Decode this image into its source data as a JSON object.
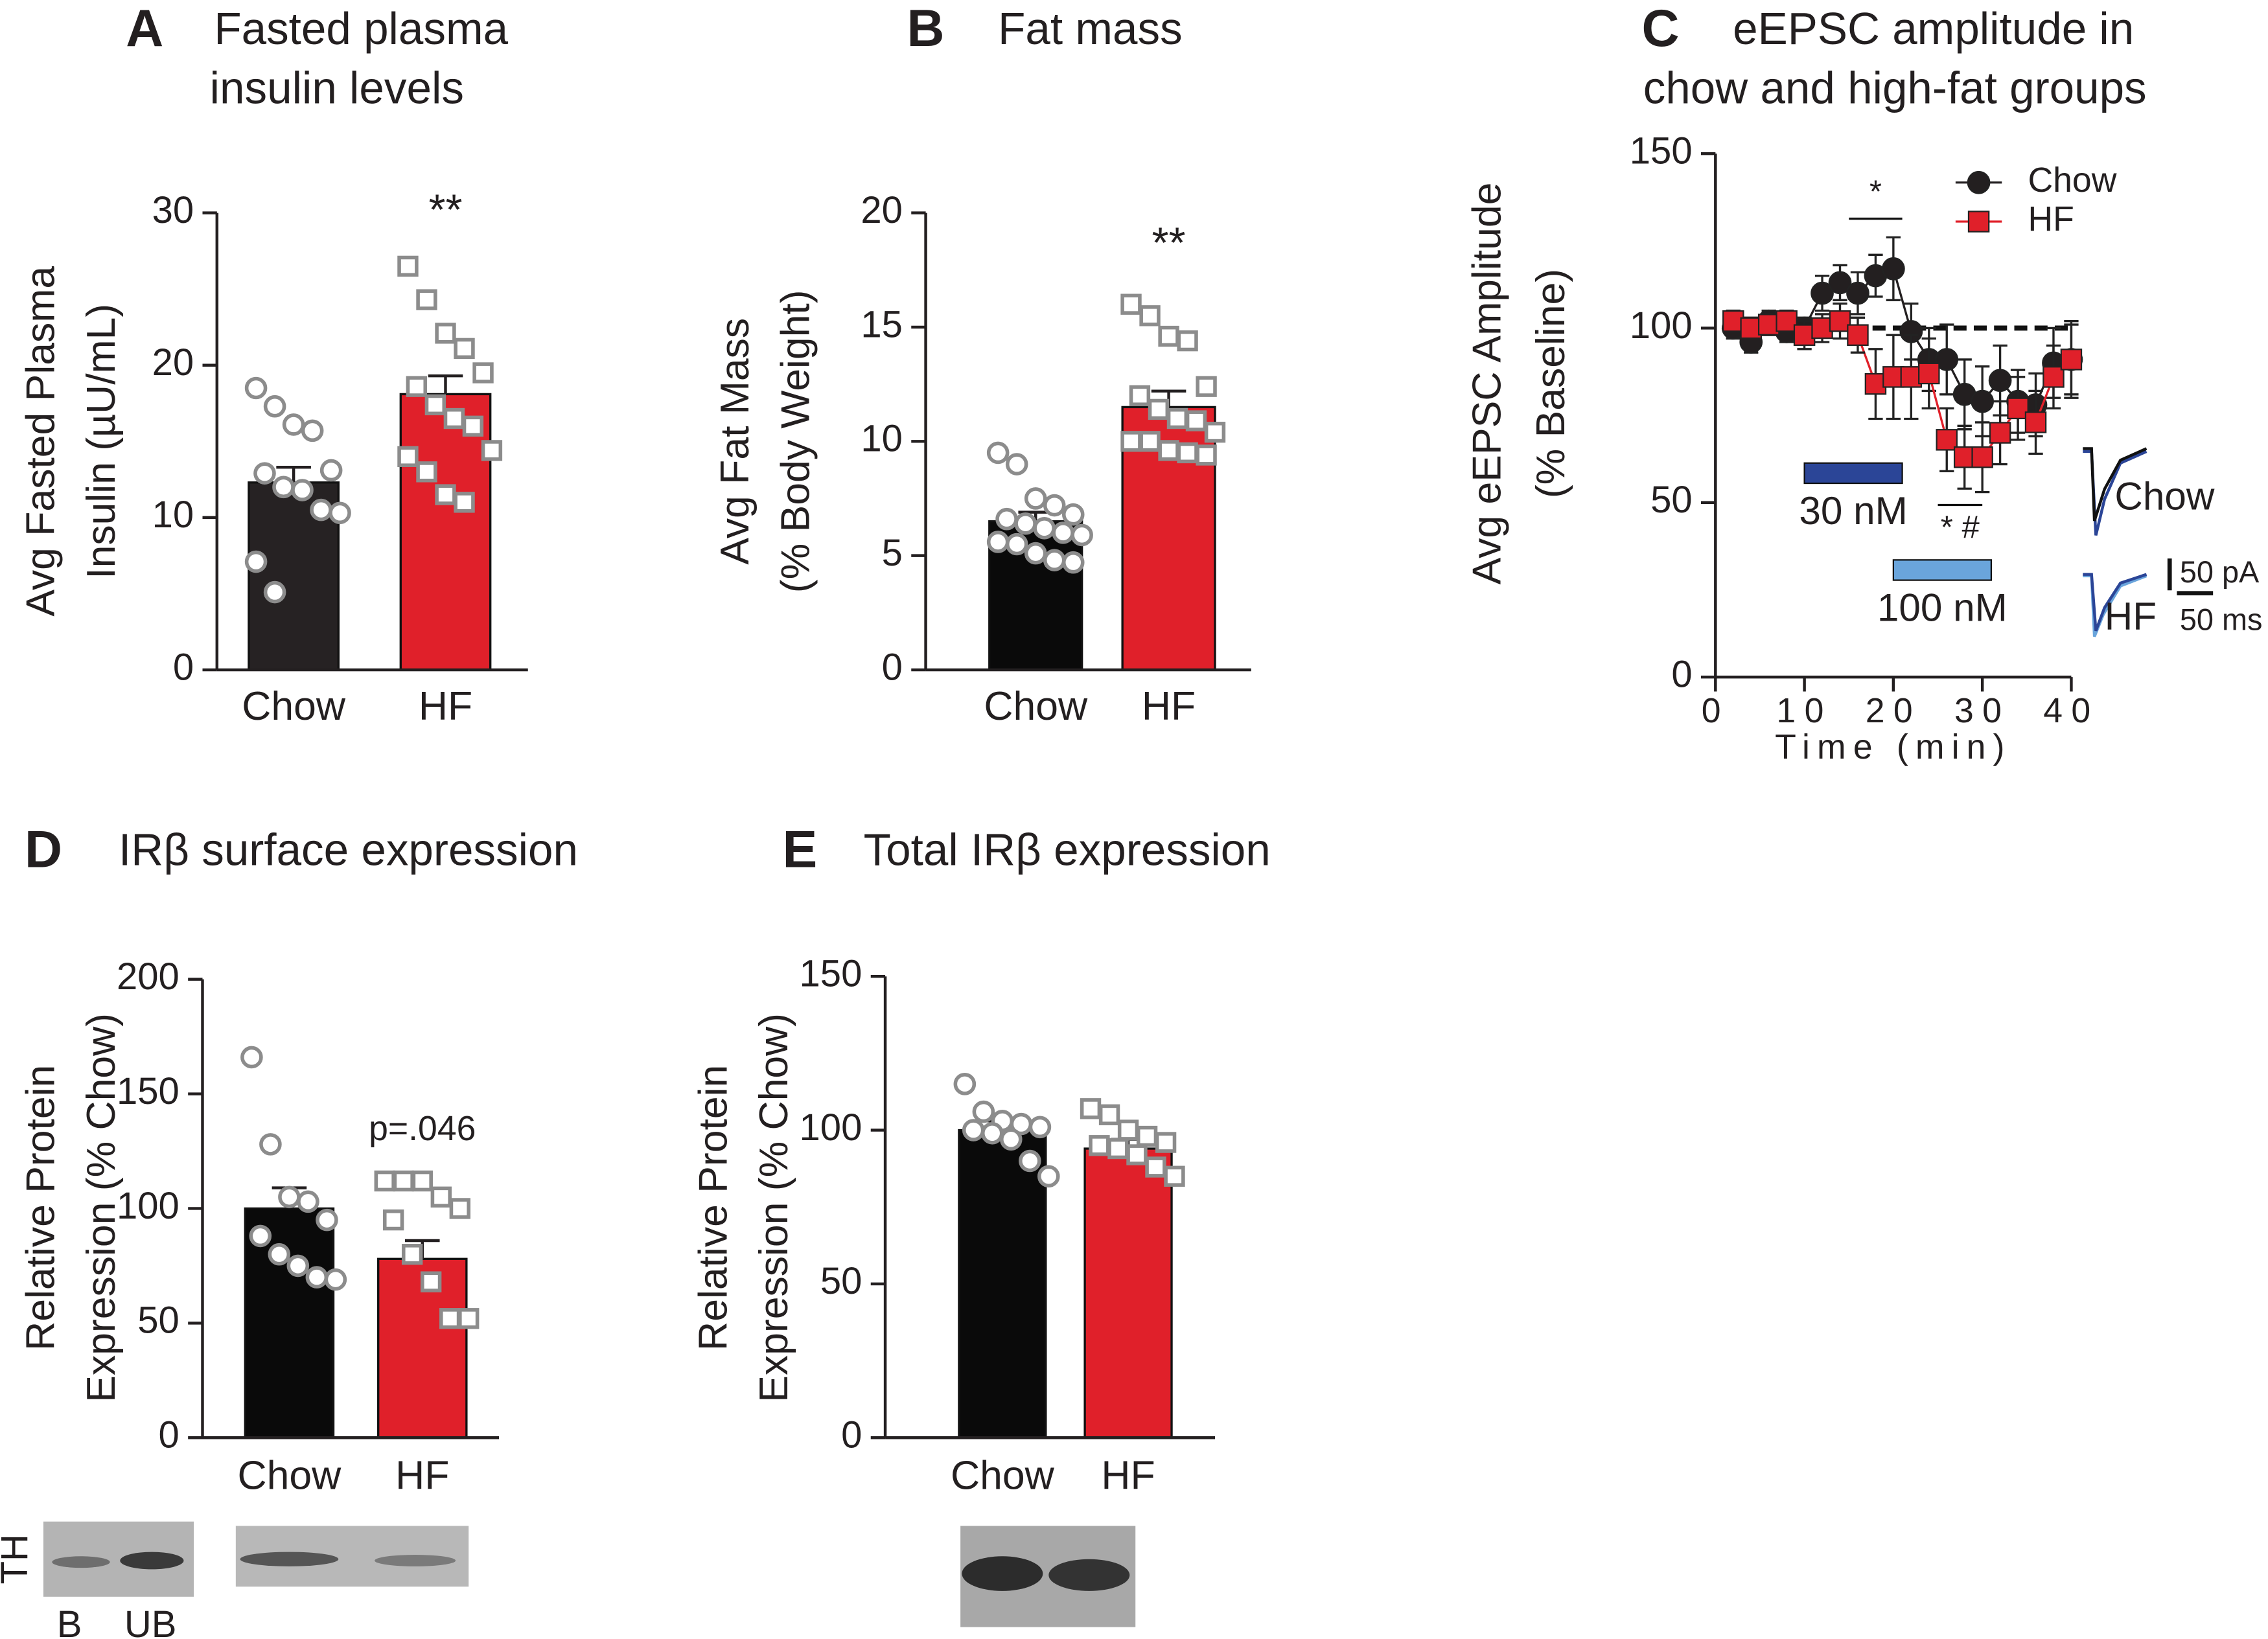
{
  "chart_data": [
    {
      "type": "bar",
      "panel": "A",
      "title": [
        "Fasted plasma",
        "insulin levels"
      ],
      "ylabel": [
        "Avg Fasted Plasma",
        "Insulin (µU/mL)"
      ],
      "categories": [
        "Chow",
        "HF"
      ],
      "values": [
        12.3,
        18.1
      ],
      "errors": [
        1,
        1.2
      ],
      "colors": [
        "#262223",
        "#e0202a"
      ],
      "markers": [
        "circle",
        "square"
      ],
      "point_color": "#8c8c8c",
      "points": [
        [
          18.5,
          17.3,
          16.1,
          15.7,
          13.1,
          12.9,
          12,
          11.8,
          10.5,
          10.3,
          7.1,
          5.1
        ],
        [
          26.5,
          24.3,
          22.1,
          21.1,
          19.5,
          18.6,
          17.4,
          16.5,
          16,
          14.4,
          14,
          13,
          11.5,
          11
        ]
      ],
      "annotations": [
        {
          "text": "**",
          "category": 1
        }
      ],
      "ylim": [
        0,
        30
      ],
      "yticks": [
        0,
        10,
        20,
        30
      ]
    },
    {
      "type": "bar",
      "panel": "B",
      "title": [
        "Fat mass"
      ],
      "ylabel": [
        "Avg Fat Mass",
        "(% Body Weight)"
      ],
      "categories": [
        "Chow",
        "HF"
      ],
      "values": [
        6.5,
        11.5
      ],
      "errors": [
        0.4,
        0.7
      ],
      "colors": [
        "#0a0a0a",
        "#e0202a"
      ],
      "markers": [
        "circle",
        "square"
      ],
      "point_color": "#8c8c8c",
      "points": [
        [
          9.5,
          9,
          7.5,
          7.2,
          6.8,
          6.6,
          6.4,
          6.2,
          6,
          5.9,
          5.6,
          5.5,
          5.1,
          4.8,
          4.7
        ],
        [
          16,
          15.5,
          14.6,
          14.4,
          12.4,
          12,
          11.4,
          11,
          10.9,
          10.4,
          10,
          10,
          9.6,
          9.5,
          9.4
        ]
      ],
      "annotations": [
        {
          "text": "**",
          "category": 1
        }
      ],
      "ylim": [
        0,
        20
      ],
      "yticks": [
        0,
        5,
        10,
        15,
        20
      ]
    },
    {
      "type": "line",
      "panel": "C",
      "title": [
        "eEPSC amplitude in",
        "chow and high-fat groups"
      ],
      "ylabel": [
        "Avg eEPSC Amplitude",
        "(% Baseline)"
      ],
      "xlabel": "Time (min)",
      "x": [
        2,
        4,
        6,
        8,
        10,
        12,
        14,
        16,
        18,
        20,
        22,
        24,
        26,
        28,
        30,
        32,
        34,
        36,
        38,
        40
      ],
      "series": [
        {
          "name": "Chow",
          "color": "#231f20",
          "marker": "circle",
          "values": [
            100,
            96,
            102,
            99,
            100,
            110,
            113,
            110,
            115,
            117,
            99,
            91,
            91,
            81,
            79,
            85,
            79,
            78,
            90,
            91
          ],
          "errors": [
            3,
            3,
            3,
            3,
            3,
            5,
            5,
            6,
            6,
            9,
            8,
            9,
            10,
            10,
            10,
            10,
            9,
            9,
            10,
            11
          ]
        },
        {
          "name": "HF",
          "color": "#e0202a",
          "marker": "square",
          "values": [
            102,
            100,
            101,
            102,
            98,
            100,
            102,
            98,
            84,
            86,
            86,
            87,
            68,
            63,
            63,
            70,
            77,
            73,
            86,
            91
          ],
          "errors": [
            3,
            3,
            3,
            3,
            4,
            4,
            5,
            5,
            10,
            12,
            12,
            10,
            9,
            9,
            10,
            9,
            9,
            9,
            9,
            10
          ]
        }
      ],
      "reference_line": 100,
      "drug_bars": [
        {
          "label": "30 nM",
          "start": 10,
          "end": 21,
          "color": "#2b4597"
        },
        {
          "label": "100 nM",
          "start": 20,
          "end": 31,
          "color": "#6aa5dc"
        }
      ],
      "annotations": [
        {
          "text": "*",
          "start": 15,
          "end": 21
        },
        {
          "text": "* #",
          "start": 25,
          "end": 30
        }
      ],
      "inset": {
        "labels": [
          "Chow",
          "HF"
        ],
        "scale_labels": [
          "50 pA",
          "50 ms"
        ]
      },
      "legend": "upper right",
      "xlim": [
        0,
        40
      ],
      "xticks": [
        0,
        10,
        20,
        30,
        40
      ],
      "ylim": [
        0,
        150
      ],
      "yticks": [
        0,
        50,
        100,
        150
      ]
    },
    {
      "type": "bar",
      "panel": "D",
      "title": [
        "IRβ surface expression"
      ],
      "ylabel": [
        "Relative Protein",
        "Expression (% Chow)"
      ],
      "categories": [
        "Chow",
        "HF"
      ],
      "values": [
        100,
        78
      ],
      "errors": [
        9,
        8
      ],
      "colors": [
        "#0a0a0a",
        "#e0202a"
      ],
      "markers": [
        "circle",
        "square"
      ],
      "point_color": "#8c8c8c",
      "points": [
        [
          166,
          128,
          105,
          103,
          95,
          88,
          80,
          75,
          70,
          69
        ],
        [
          112,
          112,
          112,
          105,
          100,
          95,
          80,
          68,
          52,
          52
        ]
      ],
      "annotations": [
        {
          "text": "p=.046",
          "category": 1
        }
      ],
      "blot_labels": [
        "TH",
        "B",
        "UB"
      ],
      "ylim": [
        0,
        200
      ],
      "yticks": [
        0,
        50,
        100,
        150,
        200
      ]
    },
    {
      "type": "bar",
      "panel": "E",
      "title": [
        "Total IRβ expression"
      ],
      "ylabel": [
        "Relative Protein",
        "Expression (% Chow)"
      ],
      "categories": [
        "Chow",
        "HF"
      ],
      "values": [
        100,
        94
      ],
      "errors": [
        3,
        3
      ],
      "colors": [
        "#0a0a0a",
        "#e0202a"
      ],
      "markers": [
        "circle",
        "square"
      ],
      "point_color": "#8c8c8c",
      "points": [
        [
          115,
          106,
          103,
          102,
          101,
          100,
          99,
          97,
          90,
          85
        ],
        [
          107,
          105,
          100,
          98,
          96,
          95,
          94,
          92,
          88,
          85
        ]
      ],
      "ylim": [
        0,
        150
      ],
      "yticks": [
        0,
        50,
        100,
        150
      ]
    }
  ]
}
